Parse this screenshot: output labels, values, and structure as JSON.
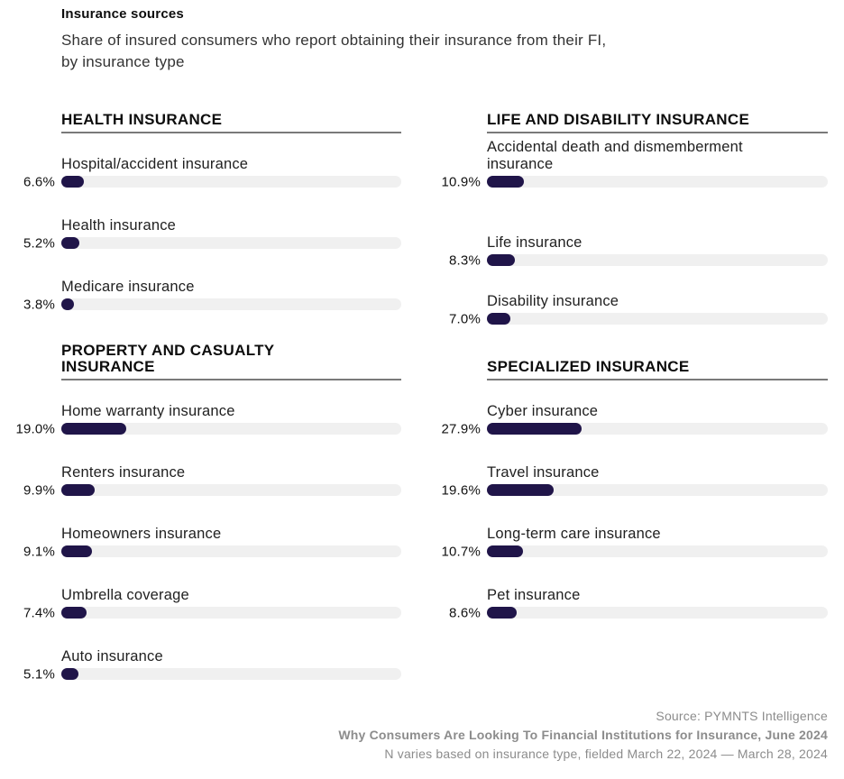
{
  "title": "Insurance sources",
  "subtitle": {
    "line1": "Share of insured consumers who report obtaining their insurance from their FI,",
    "line2": "by insurance type"
  },
  "colors": {
    "bar_fill": "#201549",
    "bar_track": "#f0f0f0",
    "rule": "#7a7a7a",
    "footer_text": "#8c8c8c"
  },
  "chart_data": {
    "type": "bar",
    "orientation": "horizontal",
    "unit": "%",
    "xlim": [
      0,
      100
    ],
    "grid": false,
    "legend": false,
    "title": "Insurance sources",
    "subtitle": "Share of insured consumers who report obtaining their insurance from their FI, by insurance type",
    "sections": [
      {
        "title": "HEALTH INSURANCE",
        "position": "top-left",
        "items": [
          {
            "label": "Hospital/accident insurance",
            "value": 6.6,
            "display": "6.6%"
          },
          {
            "label": "Health insurance",
            "value": 5.2,
            "display": "5.2%"
          },
          {
            "label": "Medicare insurance",
            "value": 3.8,
            "display": "3.8%"
          }
        ]
      },
      {
        "title": "LIFE AND DISABILITY INSURANCE",
        "position": "top-right",
        "items": [
          {
            "label": "Accidental death and dismemberment insurance",
            "value": 10.9,
            "display": "10.9%"
          },
          {
            "label": "Life insurance",
            "value": 8.3,
            "display": "8.3%"
          },
          {
            "label": "Disability insurance",
            "value": 7.0,
            "display": "7.0%"
          }
        ]
      },
      {
        "title": "PROPERTY AND CASUALTY INSURANCE",
        "position": "bottom-left",
        "items": [
          {
            "label": "Home warranty insurance",
            "value": 19.0,
            "display": "19.0%"
          },
          {
            "label": "Renters insurance",
            "value": 9.9,
            "display": "9.9%"
          },
          {
            "label": "Homeowners insurance",
            "value": 9.1,
            "display": "9.1%"
          },
          {
            "label": "Umbrella coverage",
            "value": 7.4,
            "display": "7.4%"
          },
          {
            "label": "Auto insurance",
            "value": 5.1,
            "display": "5.1%"
          }
        ]
      },
      {
        "title": "SPECIALIZED INSURANCE",
        "position": "bottom-right",
        "items": [
          {
            "label": "Cyber insurance",
            "value": 27.9,
            "display": "27.9%"
          },
          {
            "label": "Travel insurance",
            "value": 19.6,
            "display": "19.6%"
          },
          {
            "label": "Long-term care insurance",
            "value": 10.7,
            "display": "10.7%"
          },
          {
            "label": "Pet insurance",
            "value": 8.6,
            "display": "8.6%"
          }
        ]
      }
    ]
  },
  "footer": {
    "source": "Source: PYMNTS Intelligence",
    "report": "Why Consumers Are Looking To Financial Institutions for Insurance, June 2024",
    "note": "N varies based on insurance type, fielded March 22, 2024 — March 28, 2024"
  }
}
